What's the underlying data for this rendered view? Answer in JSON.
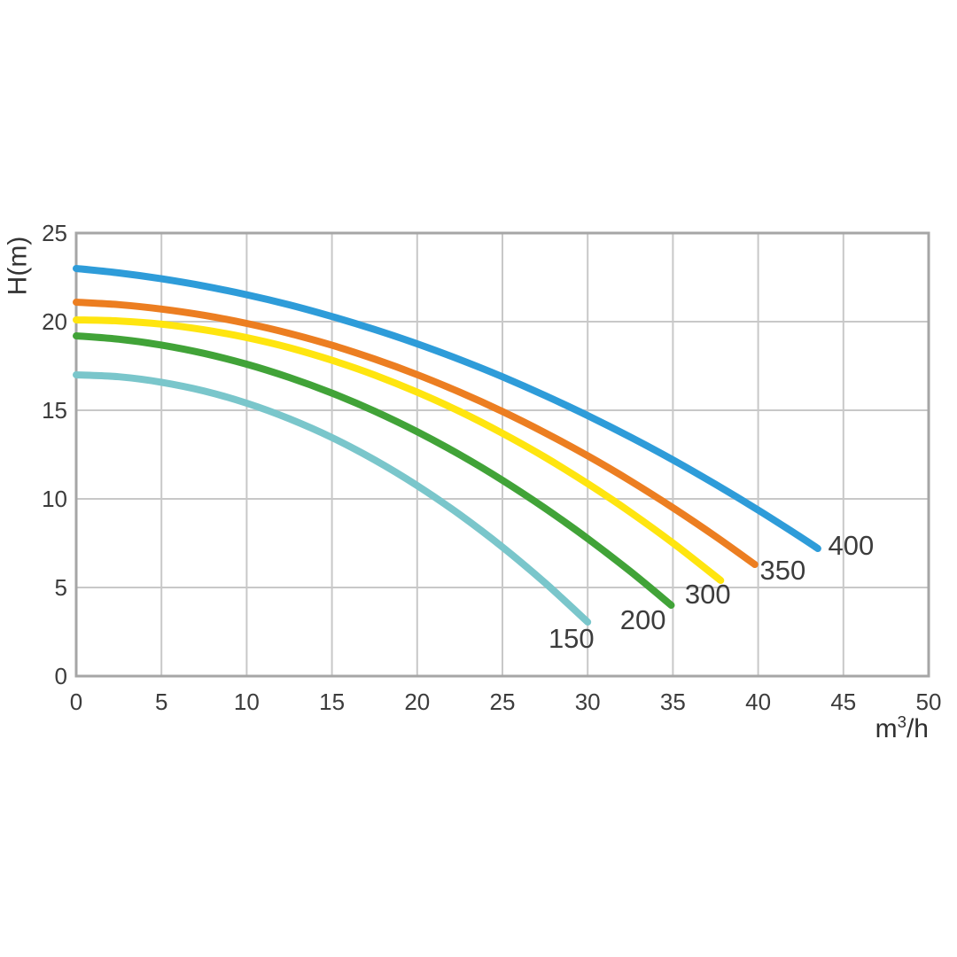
{
  "chart_data": {
    "type": "line",
    "title": "",
    "ylabel": "H(m)",
    "xlabel_parts": {
      "base": "m",
      "sup": "3",
      "rest": "/h"
    },
    "xlim": [
      0,
      50
    ],
    "ylim": [
      0,
      25
    ],
    "xticks": [
      0,
      5,
      10,
      15,
      20,
      25,
      30,
      35,
      40,
      45,
      50
    ],
    "yticks": [
      0,
      5,
      10,
      15,
      20,
      25
    ],
    "grid": true,
    "legend_position": "inline-curve-end-labels",
    "grid_color": "#c8c8c8",
    "border_color": "#a6a6a6",
    "text_color": "#3c3c3c",
    "series": [
      {
        "name": "150",
        "color": "#7ac6cb",
        "label": {
          "text": "150",
          "x": 27.7,
          "h": 2.1
        },
        "points": [
          [
            0,
            17.0
          ],
          [
            2.5,
            16.89
          ],
          [
            5,
            16.58
          ],
          [
            7.5,
            16.09
          ],
          [
            10,
            15.4
          ],
          [
            12.5,
            14.52
          ],
          [
            15,
            13.46
          ],
          [
            17.5,
            12.2
          ],
          [
            20,
            10.75
          ],
          [
            22.5,
            9.11
          ],
          [
            25,
            7.28
          ],
          [
            27.5,
            5.26
          ],
          [
            30,
            3.05
          ]
        ]
      },
      {
        "name": "200",
        "color": "#41a338",
        "label": {
          "text": "200",
          "x": 31.9,
          "h": 3.15
        },
        "points": [
          [
            0,
            19.2
          ],
          [
            2.5,
            19.01
          ],
          [
            5,
            18.68
          ],
          [
            7.5,
            18.21
          ],
          [
            10,
            17.6
          ],
          [
            12.5,
            16.85
          ],
          [
            15,
            15.97
          ],
          [
            17.5,
            14.95
          ],
          [
            20,
            13.79
          ],
          [
            22.5,
            12.49
          ],
          [
            25,
            11.05
          ],
          [
            27.5,
            9.47
          ],
          [
            30,
            7.76
          ],
          [
            32.5,
            5.91
          ],
          [
            34.9,
            4.0
          ]
        ]
      },
      {
        "name": "300",
        "color": "#ffe50f",
        "label": {
          "text": "300",
          "x": 35.7,
          "h": 4.6
        },
        "points": [
          [
            0,
            20.1
          ],
          [
            2.5,
            20.04
          ],
          [
            5,
            19.86
          ],
          [
            7.5,
            19.54
          ],
          [
            10,
            19.1
          ],
          [
            12.5,
            18.53
          ],
          [
            15,
            17.82
          ],
          [
            17.5,
            16.99
          ],
          [
            20,
            16.02
          ],
          [
            22.5,
            14.93
          ],
          [
            25,
            13.7
          ],
          [
            27.5,
            12.35
          ],
          [
            30,
            10.86
          ],
          [
            32.5,
            9.25
          ],
          [
            35,
            7.51
          ],
          [
            37.8,
            5.4
          ]
        ]
      },
      {
        "name": "350",
        "color": "#ec7e21",
        "label": {
          "text": "350",
          "x": 40.1,
          "h": 5.95
        },
        "points": [
          [
            0,
            21.1
          ],
          [
            2.5,
            20.96
          ],
          [
            5,
            20.71
          ],
          [
            7.5,
            20.36
          ],
          [
            10,
            19.9
          ],
          [
            12.5,
            19.34
          ],
          [
            15,
            18.67
          ],
          [
            17.5,
            17.89
          ],
          [
            20,
            17.01
          ],
          [
            22.5,
            16.02
          ],
          [
            25,
            14.93
          ],
          [
            27.5,
            13.73
          ],
          [
            30,
            12.43
          ],
          [
            32.5,
            11.02
          ],
          [
            35,
            9.5
          ],
          [
            37.5,
            7.88
          ],
          [
            39.8,
            6.3
          ]
        ]
      },
      {
        "name": "400",
        "color": "#2e9cd9",
        "label": {
          "text": "400",
          "x": 44.1,
          "h": 7.35
        },
        "points": [
          [
            0,
            23.0
          ],
          [
            2.5,
            22.75
          ],
          [
            5,
            22.42
          ],
          [
            7.5,
            22.01
          ],
          [
            10,
            21.52
          ],
          [
            12.5,
            20.95
          ],
          [
            15,
            20.29
          ],
          [
            17.5,
            19.56
          ],
          [
            20,
            18.75
          ],
          [
            22.5,
            17.86
          ],
          [
            25,
            16.89
          ],
          [
            27.5,
            15.83
          ],
          [
            30,
            14.7
          ],
          [
            32.5,
            13.49
          ],
          [
            35,
            12.2
          ],
          [
            37.5,
            10.82
          ],
          [
            40,
            9.37
          ],
          [
            42.5,
            7.84
          ],
          [
            43.5,
            7.2
          ]
        ]
      }
    ]
  }
}
